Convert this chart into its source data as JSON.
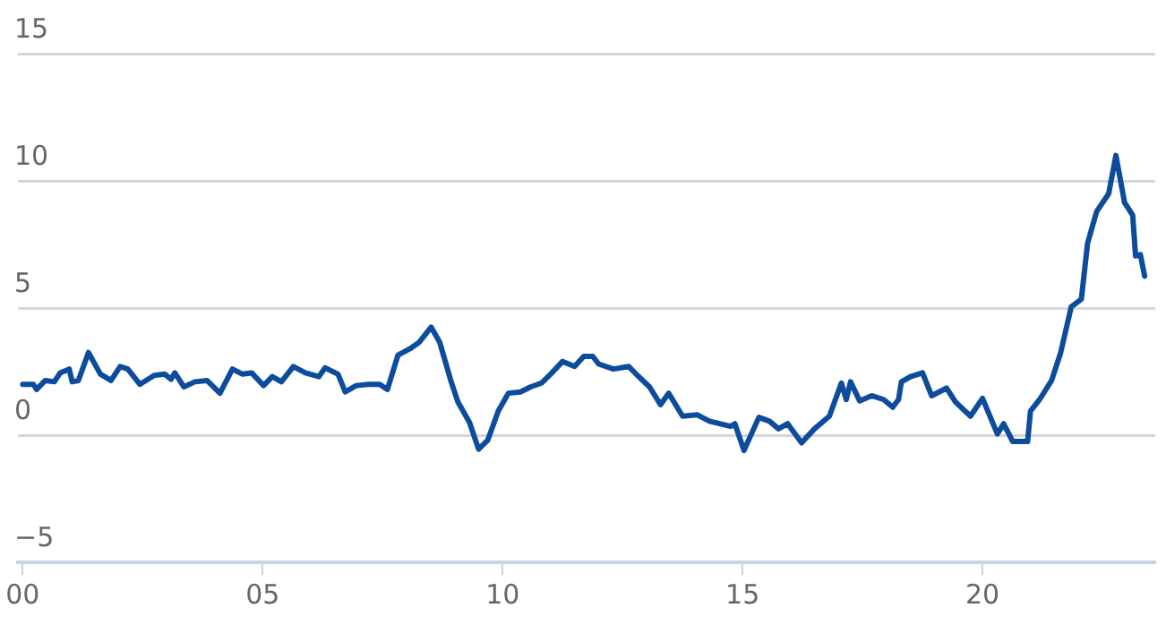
{
  "chart_data": {
    "type": "line",
    "x": [
      2000.0,
      2000.22,
      2000.29,
      2000.47,
      2000.66,
      2000.78,
      2000.97,
      2001.03,
      2001.16,
      2001.37,
      2001.62,
      2001.84,
      2002.03,
      2002.19,
      2002.44,
      2002.74,
      2002.96,
      2003.09,
      2003.17,
      2003.36,
      2003.59,
      2003.84,
      2004.11,
      2004.37,
      2004.58,
      2004.77,
      2005.02,
      2005.2,
      2005.39,
      2005.64,
      2005.89,
      2006.17,
      2006.3,
      2006.57,
      2006.72,
      2006.95,
      2007.2,
      2007.44,
      2007.6,
      2007.82,
      2008.07,
      2008.26,
      2008.51,
      2008.69,
      2008.92,
      2009.07,
      2009.31,
      2009.5,
      2009.69,
      2009.91,
      2010.12,
      2010.37,
      2010.59,
      2010.81,
      2011.0,
      2011.25,
      2011.5,
      2011.69,
      2011.88,
      2012.0,
      2012.31,
      2012.63,
      2012.81,
      2013.06,
      2013.29,
      2013.46,
      2013.75,
      2014.06,
      2014.31,
      2014.75,
      2014.84,
      2015.03,
      2015.34,
      2015.56,
      2015.75,
      2015.94,
      2016.23,
      2016.5,
      2016.81,
      2017.06,
      2017.16,
      2017.25,
      2017.44,
      2017.69,
      2017.94,
      2018.13,
      2018.25,
      2018.31,
      2018.5,
      2018.75,
      2018.94,
      2019.25,
      2019.44,
      2019.75,
      2020.0,
      2020.31,
      2020.44,
      2020.63,
      2020.94,
      2021.0,
      2021.19,
      2021.44,
      2021.63,
      2021.85,
      2022.06,
      2022.19,
      2022.38,
      2022.63,
      2022.78,
      2022.96,
      2023.13,
      2023.19,
      2023.29,
      2023.38
    ],
    "series": [
      {
        "color": "#0d4c9c",
        "values": [
          2.0,
          2.0,
          1.8,
          2.15,
          2.1,
          2.45,
          2.6,
          2.1,
          2.15,
          3.25,
          2.4,
          2.15,
          2.7,
          2.6,
          2.0,
          2.35,
          2.4,
          2.2,
          2.45,
          1.9,
          2.1,
          2.15,
          1.65,
          2.6,
          2.4,
          2.45,
          1.95,
          2.3,
          2.1,
          2.7,
          2.45,
          2.3,
          2.65,
          2.4,
          1.7,
          1.95,
          2.0,
          2.0,
          1.8,
          3.15,
          3.4,
          3.65,
          4.25,
          3.65,
          2.15,
          1.3,
          0.5,
          -0.55,
          -0.2,
          0.95,
          1.65,
          1.7,
          1.9,
          2.05,
          2.4,
          2.9,
          2.7,
          3.1,
          3.1,
          2.8,
          2.6,
          2.7,
          2.35,
          1.9,
          1.2,
          1.65,
          0.75,
          0.8,
          0.55,
          0.35,
          0.45,
          -0.6,
          0.7,
          0.55,
          0.25,
          0.45,
          -0.3,
          0.25,
          0.75,
          2.05,
          1.4,
          2.1,
          1.35,
          1.55,
          1.4,
          1.1,
          1.4,
          2.1,
          2.3,
          2.45,
          1.55,
          1.85,
          1.3,
          0.75,
          1.45,
          0.05,
          0.45,
          -0.25,
          -0.25,
          0.95,
          1.4,
          2.15,
          3.25,
          5.05,
          5.35,
          7.55,
          8.8,
          9.5,
          11.0,
          9.15,
          8.65,
          7.05,
          7.1,
          6.25
        ]
      }
    ],
    "xlim": [
      1999.9,
      2023.6
    ],
    "xticks": [
      {
        "value": 2000,
        "label": "00"
      },
      {
        "value": 2005,
        "label": "05"
      },
      {
        "value": 2010,
        "label": "10"
      },
      {
        "value": 2015,
        "label": "15"
      },
      {
        "value": 2020,
        "label": "20"
      }
    ],
    "ylim": [
      -5,
      15
    ],
    "yticks": [
      -5,
      0,
      5,
      10,
      15
    ],
    "grid": "y",
    "legend": false,
    "marker": "none",
    "line_style": "solid"
  }
}
